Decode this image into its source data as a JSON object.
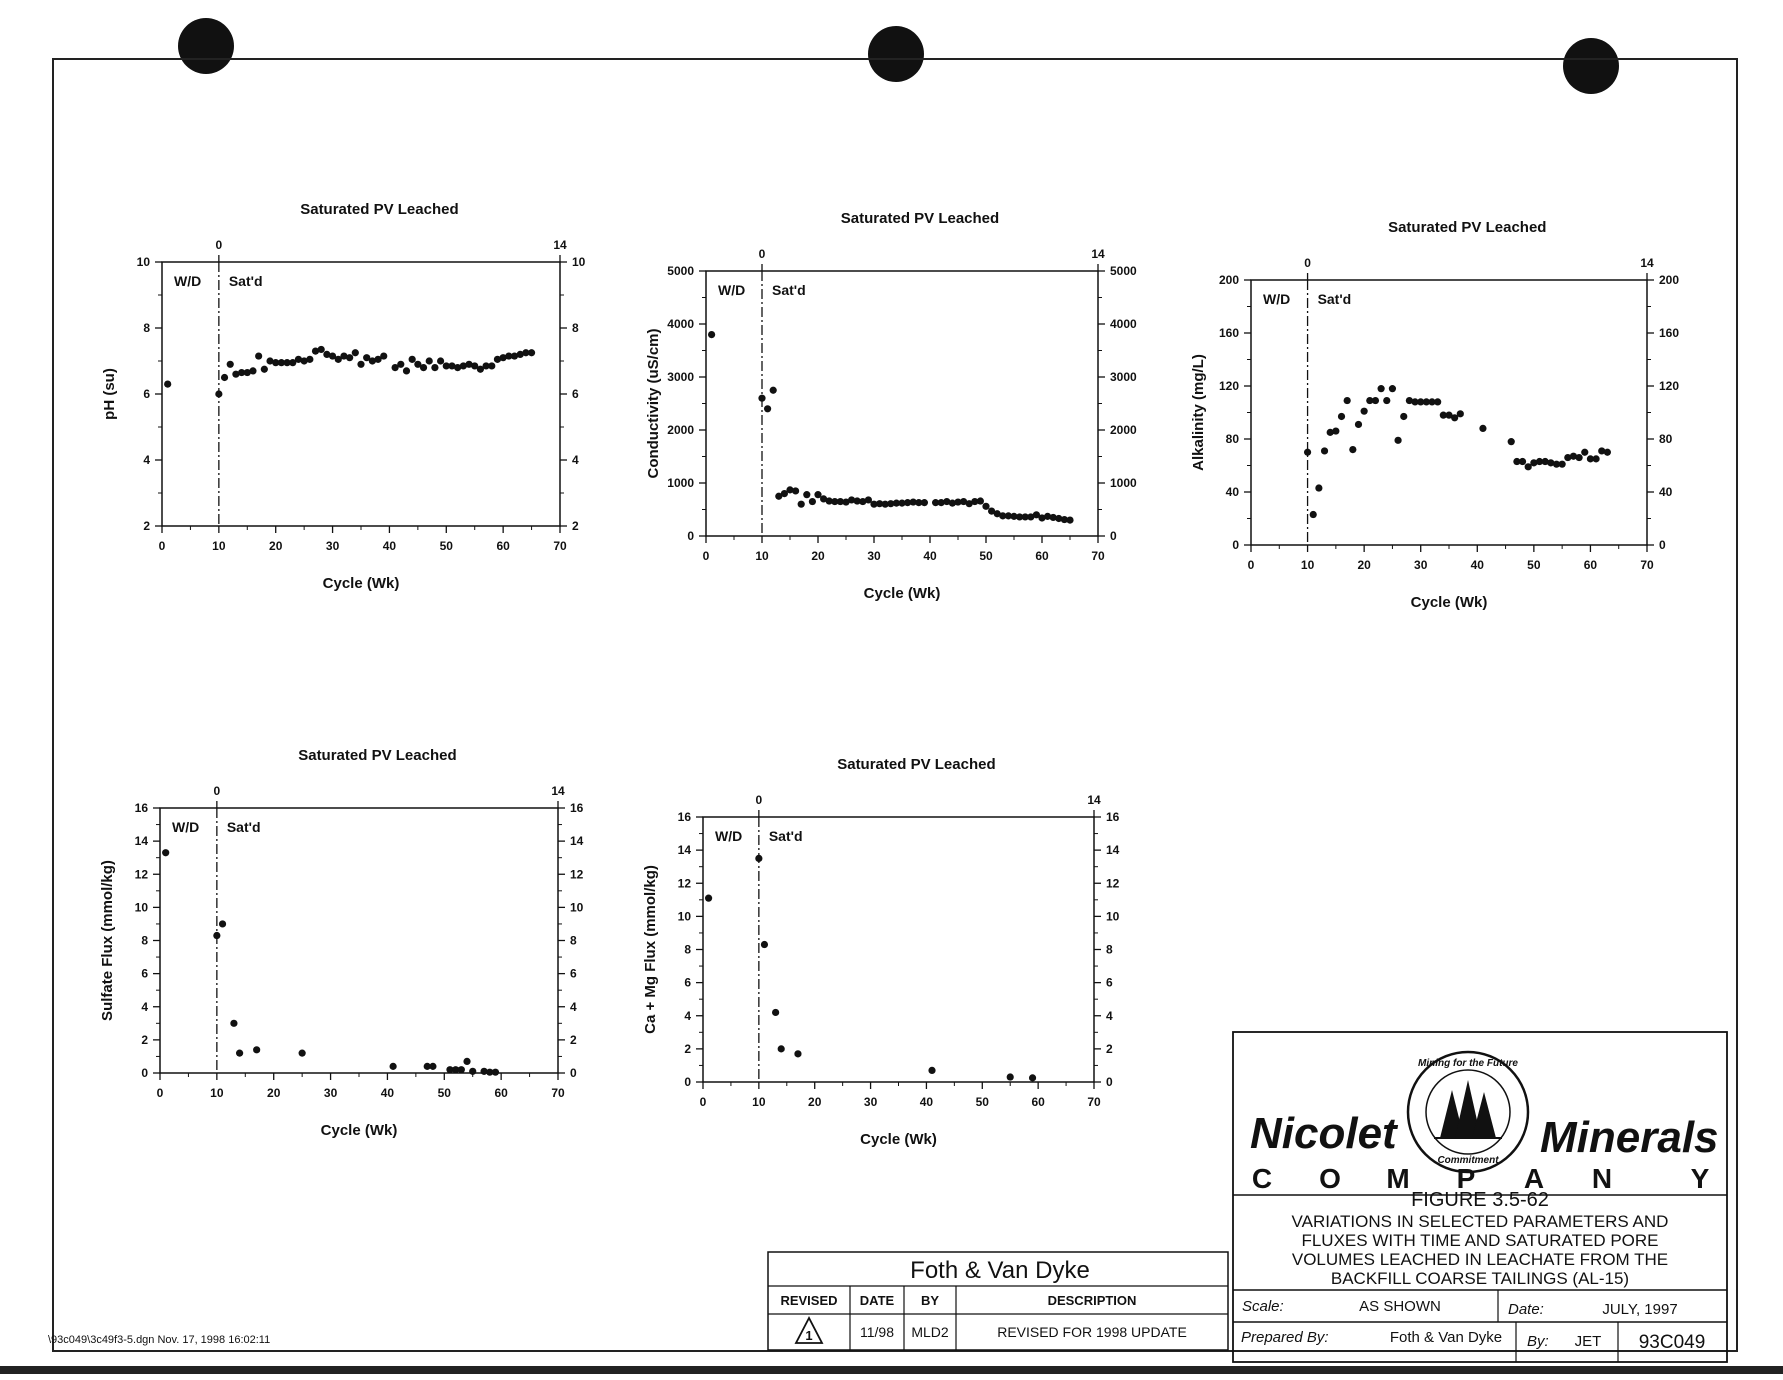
{
  "file_label": "\\93c049\\3c49f3-5.dgn  Nov. 17, 1998  16:02:11",
  "chart_data": [
    {
      "type": "scatter",
      "title": "Saturated PV Leached",
      "xlabel": "Cycle (Wk)",
      "ylabel": "pH (su)",
      "xlim": [
        0,
        70
      ],
      "ylim": [
        2,
        10
      ],
      "xticks": [
        0,
        10,
        20,
        30,
        40,
        50,
        60,
        70
      ],
      "yticks": [
        2,
        4,
        6,
        8,
        10
      ],
      "top_axis_labels": [
        "0",
        "14"
      ],
      "region_labels": [
        "W/D",
        "Sat'd"
      ],
      "divider_x": 10,
      "x": [
        1,
        10,
        11,
        12,
        13,
        14,
        15,
        16,
        17,
        18,
        19,
        20,
        21,
        22,
        23,
        24,
        25,
        26,
        27,
        28,
        29,
        30,
        31,
        32,
        33,
        34,
        35,
        36,
        37,
        38,
        39,
        41,
        42,
        43,
        44,
        45,
        46,
        47,
        48,
        49,
        50,
        51,
        52,
        53,
        54,
        55,
        56,
        57,
        58,
        59,
        60,
        61,
        62,
        63,
        64,
        65
      ],
      "y": [
        6.3,
        6.0,
        6.5,
        6.9,
        6.6,
        6.65,
        6.65,
        6.7,
        7.15,
        6.75,
        7.0,
        6.95,
        6.95,
        6.95,
        6.95,
        7.05,
        7.0,
        7.05,
        7.3,
        7.35,
        7.2,
        7.15,
        7.05,
        7.15,
        7.1,
        7.25,
        6.9,
        7.1,
        7.0,
        7.05,
        7.15,
        6.8,
        6.9,
        6.7,
        7.05,
        6.9,
        6.8,
        7.0,
        6.8,
        7.0,
        6.85,
        6.85,
        6.8,
        6.85,
        6.9,
        6.85,
        6.75,
        6.85,
        6.85,
        7.05,
        7.1,
        7.15,
        7.15,
        7.2,
        7.25,
        7.25
      ]
    },
    {
      "type": "scatter",
      "title": "Saturated PV Leached",
      "xlabel": "Cycle (Wk)",
      "ylabel": "Conductivity (uS/cm)",
      "xlim": [
        0,
        70
      ],
      "ylim": [
        0,
        5000
      ],
      "xticks": [
        0,
        10,
        20,
        30,
        40,
        50,
        60,
        70
      ],
      "yticks": [
        0,
        1000,
        2000,
        3000,
        4000,
        5000
      ],
      "top_axis_labels": [
        "0",
        "14"
      ],
      "region_labels": [
        "W/D",
        "Sat'd"
      ],
      "divider_x": 10,
      "x": [
        1,
        10,
        11,
        12,
        13,
        14,
        15,
        16,
        17,
        18,
        19,
        20,
        21,
        22,
        23,
        24,
        25,
        26,
        27,
        28,
        29,
        30,
        31,
        32,
        33,
        34,
        35,
        36,
        37,
        38,
        39,
        41,
        42,
        43,
        44,
        45,
        46,
        47,
        48,
        49,
        50,
        51,
        52,
        53,
        54,
        55,
        56,
        57,
        58,
        59,
        60,
        61,
        62,
        63,
        64,
        65
      ],
      "y": [
        3800,
        2600,
        2400,
        2750,
        750,
        800,
        870,
        850,
        600,
        780,
        650,
        780,
        700,
        660,
        650,
        650,
        640,
        680,
        660,
        650,
        680,
        600,
        610,
        600,
        610,
        620,
        620,
        630,
        640,
        630,
        630,
        630,
        630,
        650,
        620,
        640,
        650,
        610,
        650,
        660,
        560,
        470,
        420,
        380,
        380,
        370,
        360,
        360,
        360,
        400,
        340,
        370,
        350,
        330,
        310,
        300
      ]
    },
    {
      "type": "scatter",
      "title": "Saturated PV Leached",
      "xlabel": "Cycle (Wk)",
      "ylabel": "Alkalinity (mg/L)",
      "xlim": [
        0,
        70
      ],
      "ylim": [
        0,
        200
      ],
      "xticks": [
        0,
        10,
        20,
        30,
        40,
        50,
        60,
        70
      ],
      "yticks": [
        0,
        40,
        80,
        120,
        160,
        200
      ],
      "top_axis_labels": [
        "0",
        "14"
      ],
      "region_labels": [
        "W/D",
        "Sat'd"
      ],
      "divider_x": 10,
      "x": [
        10,
        11,
        12,
        13,
        14,
        15,
        16,
        17,
        18,
        19,
        20,
        21,
        22,
        23,
        24,
        25,
        26,
        27,
        28,
        29,
        30,
        31,
        32,
        33,
        34,
        35,
        36,
        37,
        41,
        46,
        47,
        48,
        49,
        50,
        51,
        52,
        53,
        54,
        55,
        56,
        57,
        58,
        59,
        60,
        61,
        62,
        63
      ],
      "y": [
        70,
        23,
        43,
        71,
        85,
        86,
        97,
        109,
        72,
        91,
        101,
        109,
        109,
        118,
        109,
        118,
        79,
        97,
        109,
        108,
        108,
        108,
        108,
        108,
        98,
        98,
        96,
        99,
        88,
        78,
        63,
        63,
        59,
        62,
        63,
        63,
        62,
        61,
        61,
        66,
        67,
        66,
        70,
        65,
        65,
        71,
        70
      ]
    },
    {
      "type": "scatter",
      "title": "Saturated PV Leached",
      "xlabel": "Cycle (Wk)",
      "ylabel": "Sulfate Flux (mmol/kg)",
      "xlim": [
        0,
        70
      ],
      "ylim": [
        0,
        16
      ],
      "xticks": [
        0,
        10,
        20,
        30,
        40,
        50,
        60,
        70
      ],
      "yticks": [
        0,
        2,
        4,
        6,
        8,
        10,
        12,
        14,
        16
      ],
      "top_axis_labels": [
        "0",
        "14"
      ],
      "region_labels": [
        "W/D",
        "Sat'd"
      ],
      "divider_x": 10,
      "x": [
        1,
        10,
        11,
        13,
        14,
        17,
        25,
        41,
        47,
        48,
        51,
        52,
        53,
        54,
        55,
        57,
        58,
        59
      ],
      "y": [
        13.3,
        8.3,
        9.0,
        3.0,
        1.2,
        1.4,
        1.2,
        0.4,
        0.4,
        0.4,
        0.2,
        0.2,
        0.2,
        0.7,
        0.1,
        0.1,
        0.05,
        0.05
      ]
    },
    {
      "type": "scatter",
      "title": "Saturated PV Leached",
      "xlabel": "Cycle (Wk)",
      "ylabel": "Ca + Mg Flux (mmol/kg)",
      "xlim": [
        0,
        70
      ],
      "ylim": [
        0,
        16
      ],
      "xticks": [
        0,
        10,
        20,
        30,
        40,
        50,
        60,
        70
      ],
      "yticks": [
        0,
        2,
        4,
        6,
        8,
        10,
        12,
        14,
        16
      ],
      "top_axis_labels": [
        "0",
        "14"
      ],
      "region_labels": [
        "W/D",
        "Sat'd"
      ],
      "divider_x": 10,
      "x": [
        1,
        10,
        11,
        13,
        14,
        17,
        41,
        55,
        59
      ],
      "y": [
        11.1,
        13.5,
        8.3,
        4.2,
        2.0,
        1.7,
        0.7,
        0.3,
        0.25
      ]
    }
  ],
  "title_block": {
    "company_left": "Nicolet",
    "company_right": "Minerals",
    "company_sub": [
      "C",
      "O",
      "M",
      "P",
      "A",
      "N",
      "Y"
    ],
    "seal_top": "Mining for the Future",
    "seal_bottom": "Commitment",
    "figure_number": "FIGURE 3.5-62",
    "figure_title_lines": [
      "VARIATIONS IN SELECTED PARAMETERS AND",
      "FLUXES WITH TIME AND SATURATED PORE",
      "VOLUMES LEACHED IN LEACHATE FROM THE",
      "BACKFILL COARSE TAILINGS (AL-15)"
    ],
    "scale_label": "Scale:",
    "scale_value": "AS SHOWN",
    "date_label": "Date:",
    "date_value": "JULY, 1997",
    "prepared_label": "Prepared By:",
    "prepared_value": "Foth & Van Dyke",
    "by_label": "By:",
    "by_value": "JET",
    "drawing_number": "93C049"
  },
  "revision_block": {
    "firm": "Foth & Van Dyke",
    "headers": [
      "REVISED",
      "DATE",
      "BY",
      "DESCRIPTION"
    ],
    "row": {
      "revised": "1",
      "date": "11/98",
      "by": "MLD2",
      "description": "REVISED FOR 1998 UPDATE"
    }
  }
}
